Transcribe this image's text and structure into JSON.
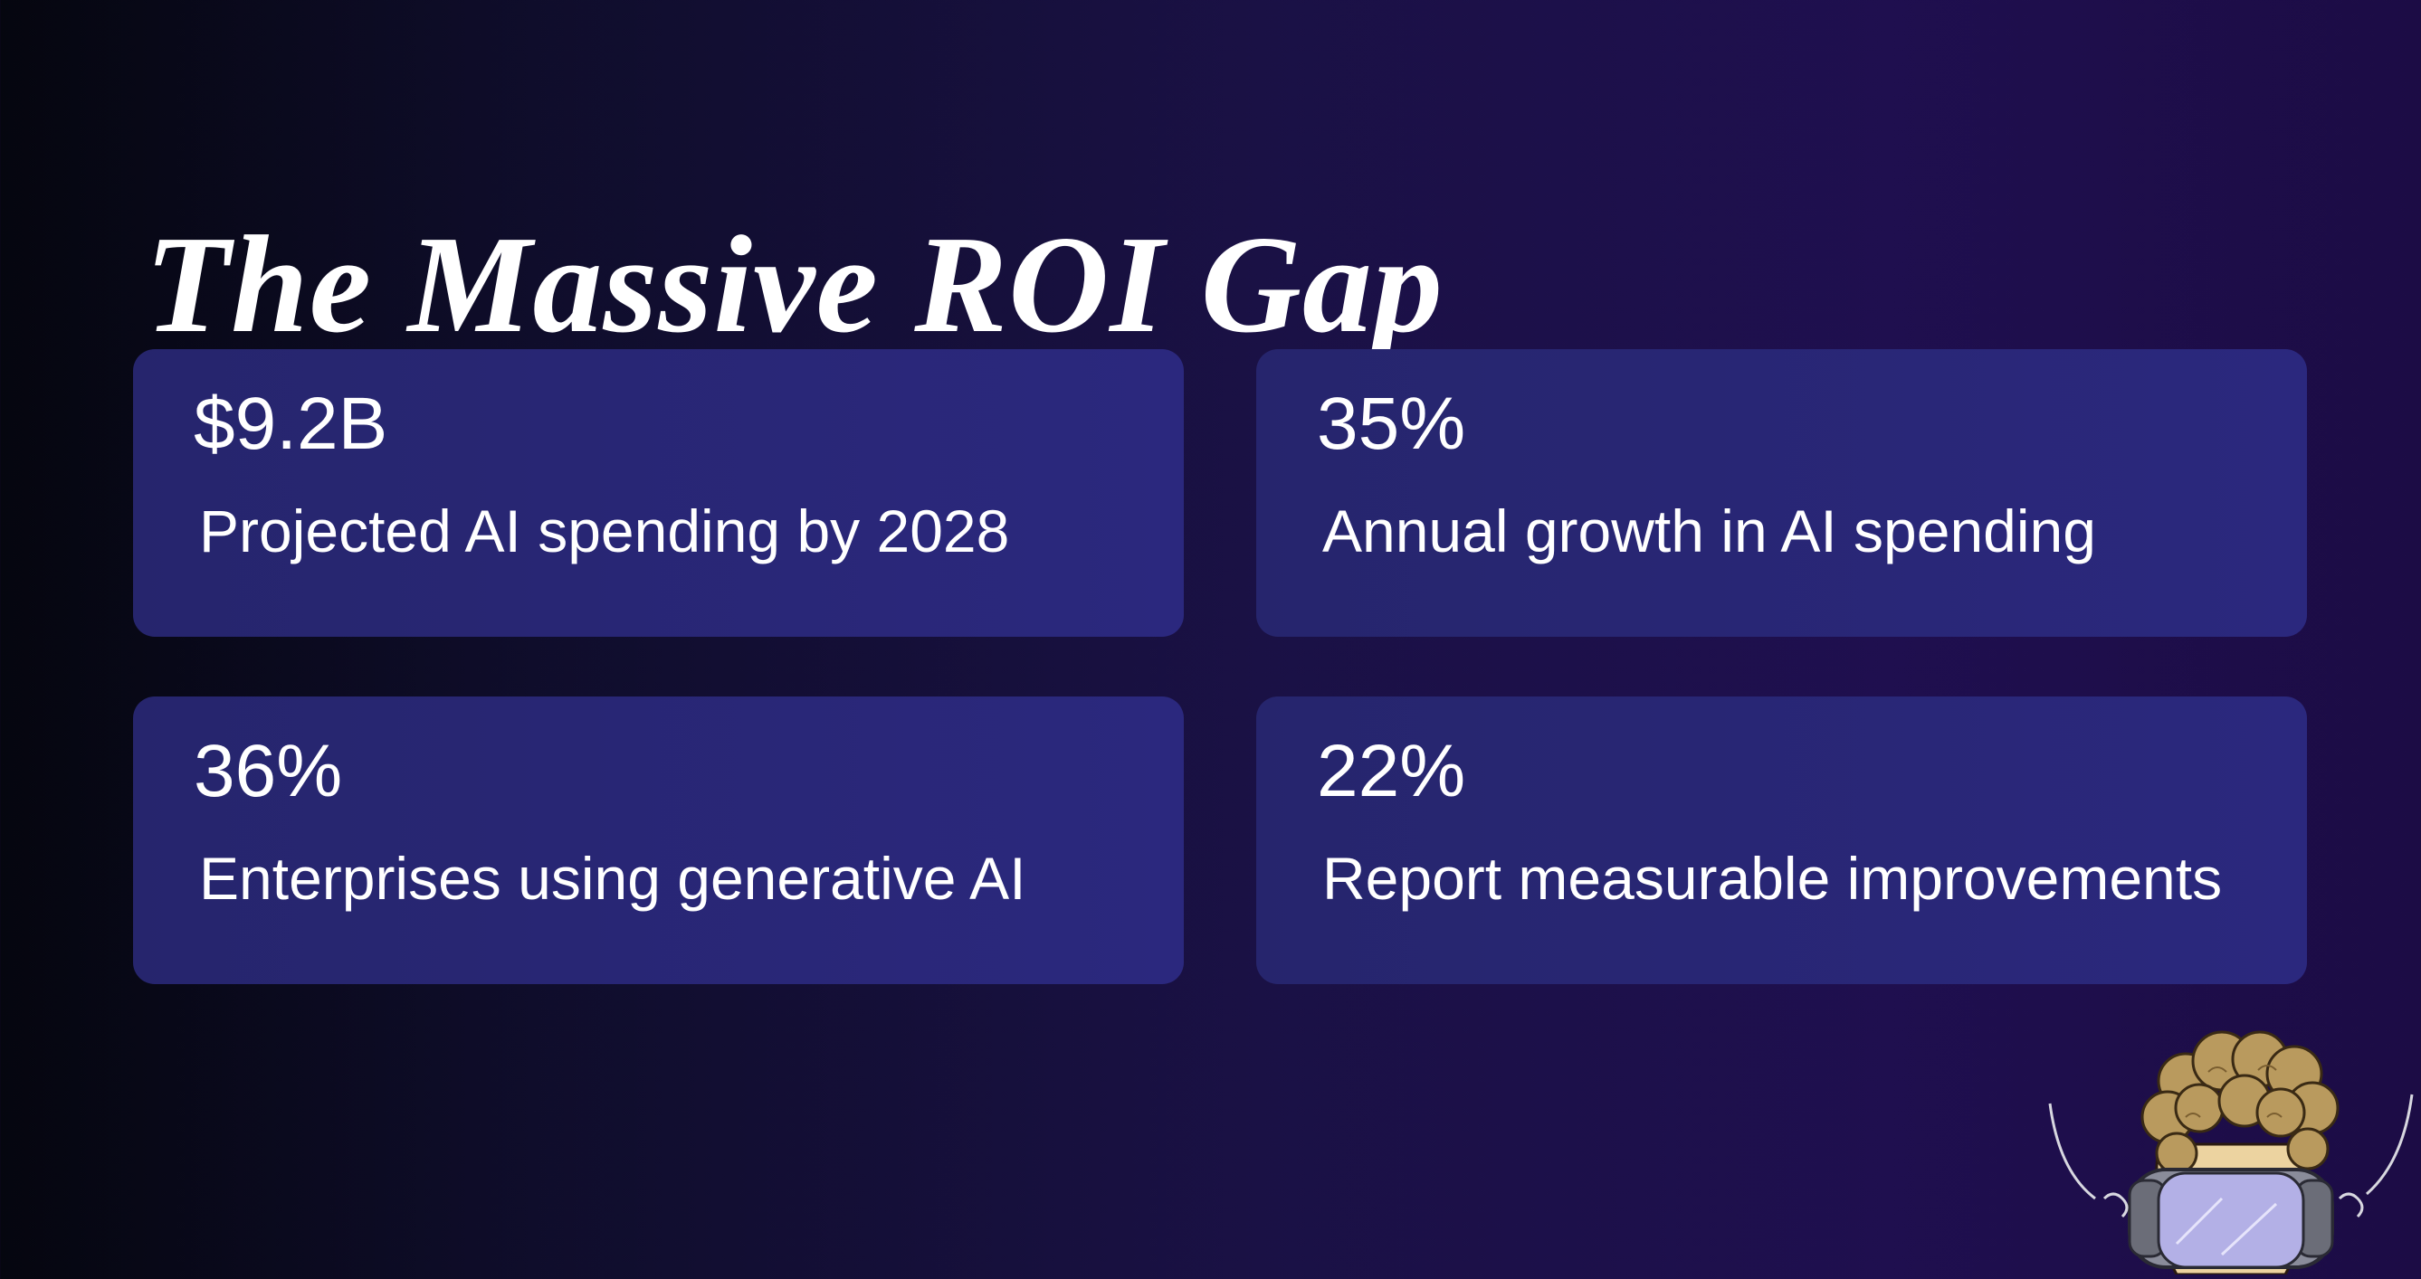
{
  "slide": {
    "title": "The Massive ROI Gap"
  },
  "stats": [
    {
      "value": "$9.2B",
      "description": "Projected AI spending by 2028"
    },
    {
      "value": "35%",
      "description": "Annual growth in AI spending"
    },
    {
      "value": "36%",
      "description": "Enterprises using generative AI"
    },
    {
      "value": "22%",
      "description": "Report measurable improvements"
    }
  ],
  "colors": {
    "background_dark": "#05060f",
    "background_purple": "#1f0f4f",
    "card": "#2a2778",
    "text": "#ffffff"
  },
  "icons": {
    "mascot": "vr-headset-character-icon"
  }
}
